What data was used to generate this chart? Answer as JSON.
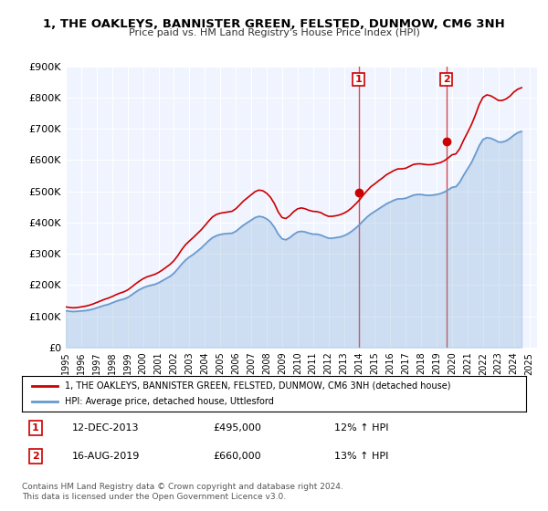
{
  "title": "1, THE OAKLEYS, BANNISTER GREEN, FELSTED, DUNMOW, CM6 3NH",
  "subtitle": "Price paid vs. HM Land Registry's House Price Index (HPI)",
  "ylabel_ticks": [
    "£0",
    "£100K",
    "£200K",
    "£300K",
    "£400K",
    "£500K",
    "£600K",
    "£700K",
    "£800K",
    "£900K"
  ],
  "ylim": [
    0,
    900000
  ],
  "ytick_vals": [
    0,
    100000,
    200000,
    300000,
    400000,
    500000,
    600000,
    700000,
    800000,
    900000
  ],
  "xmin": 1995.0,
  "xmax": 2025.5,
  "bg_color": "#ffffff",
  "plot_bg_color": "#f0f4ff",
  "grid_color": "#ffffff",
  "red_line_color": "#cc0000",
  "blue_line_color": "#6699cc",
  "sale1_x": 2013.95,
  "sale1_y": 495000,
  "sale2_x": 2019.62,
  "sale2_y": 660000,
  "legend_label_red": "1, THE OAKLEYS, BANNISTER GREEN, FELSTED, DUNMOW, CM6 3NH (detached house)",
  "legend_label_blue": "HPI: Average price, detached house, Uttlesford",
  "annotation1_label": "1",
  "annotation1_date": "12-DEC-2013",
  "annotation1_price": "£495,000",
  "annotation1_hpi": "12% ↑ HPI",
  "annotation2_label": "2",
  "annotation2_date": "16-AUG-2019",
  "annotation2_price": "£660,000",
  "annotation2_hpi": "13% ↑ HPI",
  "copyright_text": "Contains HM Land Registry data © Crown copyright and database right 2024.\nThis data is licensed under the Open Government Licence v3.0.",
  "hpi_data": {
    "dates": [
      1995.0,
      1995.25,
      1995.5,
      1995.75,
      1996.0,
      1996.25,
      1996.5,
      1996.75,
      1997.0,
      1997.25,
      1997.5,
      1997.75,
      1998.0,
      1998.25,
      1998.5,
      1998.75,
      1999.0,
      1999.25,
      1999.5,
      1999.75,
      2000.0,
      2000.25,
      2000.5,
      2000.75,
      2001.0,
      2001.25,
      2001.5,
      2001.75,
      2002.0,
      2002.25,
      2002.5,
      2002.75,
      2003.0,
      2003.25,
      2003.5,
      2003.75,
      2004.0,
      2004.25,
      2004.5,
      2004.75,
      2005.0,
      2005.25,
      2005.5,
      2005.75,
      2006.0,
      2006.25,
      2006.5,
      2006.75,
      2007.0,
      2007.25,
      2007.5,
      2007.75,
      2008.0,
      2008.25,
      2008.5,
      2008.75,
      2009.0,
      2009.25,
      2009.5,
      2009.75,
      2010.0,
      2010.25,
      2010.5,
      2010.75,
      2011.0,
      2011.25,
      2011.5,
      2011.75,
      2012.0,
      2012.25,
      2012.5,
      2012.75,
      2013.0,
      2013.25,
      2013.5,
      2013.75,
      2014.0,
      2014.25,
      2014.5,
      2014.75,
      2015.0,
      2015.25,
      2015.5,
      2015.75,
      2016.0,
      2016.25,
      2016.5,
      2016.75,
      2017.0,
      2017.25,
      2017.5,
      2017.75,
      2018.0,
      2018.25,
      2018.5,
      2018.75,
      2019.0,
      2019.25,
      2019.5,
      2019.75,
      2020.0,
      2020.25,
      2020.5,
      2020.75,
      2021.0,
      2021.25,
      2021.5,
      2021.75,
      2022.0,
      2022.25,
      2022.5,
      2022.75,
      2023.0,
      2023.25,
      2023.5,
      2023.75,
      2024.0,
      2024.25,
      2024.5
    ],
    "values": [
      118000,
      116000,
      115000,
      116000,
      117000,
      118000,
      120000,
      123000,
      127000,
      131000,
      135000,
      138000,
      143000,
      148000,
      152000,
      155000,
      160000,
      168000,
      177000,
      185000,
      191000,
      196000,
      199000,
      202000,
      207000,
      214000,
      221000,
      228000,
      238000,
      252000,
      267000,
      280000,
      290000,
      298000,
      308000,
      318000,
      330000,
      342000,
      352000,
      358000,
      362000,
      364000,
      365000,
      366000,
      372000,
      382000,
      392000,
      400000,
      408000,
      416000,
      420000,
      418000,
      412000,
      402000,
      385000,
      363000,
      348000,
      345000,
      352000,
      362000,
      370000,
      372000,
      370000,
      366000,
      363000,
      363000,
      360000,
      355000,
      350000,
      350000,
      352000,
      354000,
      358000,
      364000,
      372000,
      382000,
      393000,
      406000,
      418000,
      428000,
      436000,
      444000,
      452000,
      460000,
      466000,
      472000,
      476000,
      476000,
      478000,
      483000,
      488000,
      490000,
      490000,
      488000,
      487000,
      488000,
      490000,
      493000,
      498000,
      505000,
      513000,
      515000,
      530000,
      552000,
      572000,
      592000,
      618000,
      646000,
      666000,
      672000,
      670000,
      665000,
      658000,
      658000,
      662000,
      670000,
      680000,
      688000,
      692000
    ]
  },
  "property_data": {
    "dates": [
      1995.0,
      1995.25,
      1995.5,
      1995.75,
      1996.0,
      1996.25,
      1996.5,
      1996.75,
      1997.0,
      1997.25,
      1997.5,
      1997.75,
      1998.0,
      1998.25,
      1998.5,
      1998.75,
      1999.0,
      1999.25,
      1999.5,
      1999.75,
      2000.0,
      2000.25,
      2000.5,
      2000.75,
      2001.0,
      2001.25,
      2001.5,
      2001.75,
      2002.0,
      2002.25,
      2002.5,
      2002.75,
      2003.0,
      2003.25,
      2003.5,
      2003.75,
      2004.0,
      2004.25,
      2004.5,
      2004.75,
      2005.0,
      2005.25,
      2005.5,
      2005.75,
      2006.0,
      2006.25,
      2006.5,
      2006.75,
      2007.0,
      2007.25,
      2007.5,
      2007.75,
      2008.0,
      2008.25,
      2008.5,
      2008.75,
      2009.0,
      2009.25,
      2009.5,
      2009.75,
      2010.0,
      2010.25,
      2010.5,
      2010.75,
      2011.0,
      2011.25,
      2011.5,
      2011.75,
      2012.0,
      2012.25,
      2012.5,
      2012.75,
      2013.0,
      2013.25,
      2013.5,
      2013.75,
      2014.0,
      2014.25,
      2014.5,
      2014.75,
      2015.0,
      2015.25,
      2015.5,
      2015.75,
      2016.0,
      2016.25,
      2016.5,
      2016.75,
      2017.0,
      2017.25,
      2017.5,
      2017.75,
      2018.0,
      2018.25,
      2018.5,
      2018.75,
      2019.0,
      2019.25,
      2019.5,
      2019.75,
      2020.0,
      2020.25,
      2020.5,
      2020.75,
      2021.0,
      2021.25,
      2021.5,
      2021.75,
      2022.0,
      2022.25,
      2022.5,
      2022.75,
      2023.0,
      2023.25,
      2023.5,
      2023.75,
      2024.0,
      2024.25,
      2024.5
    ],
    "values": [
      130000,
      128000,
      127000,
      128000,
      130000,
      132000,
      135000,
      139000,
      144000,
      149000,
      154000,
      158000,
      163000,
      169000,
      174000,
      178000,
      184000,
      193000,
      203000,
      212000,
      220000,
      226000,
      230000,
      234000,
      240000,
      248000,
      257000,
      266000,
      278000,
      294000,
      313000,
      329000,
      341000,
      352000,
      364000,
      376000,
      390000,
      405000,
      418000,
      426000,
      430000,
      432000,
      434000,
      436000,
      444000,
      456000,
      469000,
      479000,
      489000,
      499000,
      504000,
      502000,
      494000,
      481000,
      461000,
      434000,
      416000,
      413000,
      422000,
      435000,
      444000,
      447000,
      444000,
      439000,
      436000,
      435000,
      432000,
      425000,
      420000,
      420000,
      422000,
      425000,
      430000,
      437000,
      447000,
      459000,
      472000,
      488000,
      502000,
      515000,
      524000,
      534000,
      543000,
      553000,
      560000,
      567000,
      572000,
      572000,
      574000,
      580000,
      586000,
      588000,
      588000,
      586000,
      585000,
      586000,
      589000,
      592000,
      598000,
      607000,
      617000,
      620000,
      637000,
      664000,
      688000,
      713000,
      743000,
      777000,
      801000,
      809000,
      806000,
      799000,
      791000,
      791000,
      796000,
      805000,
      818000,
      827000,
      832000
    ]
  }
}
